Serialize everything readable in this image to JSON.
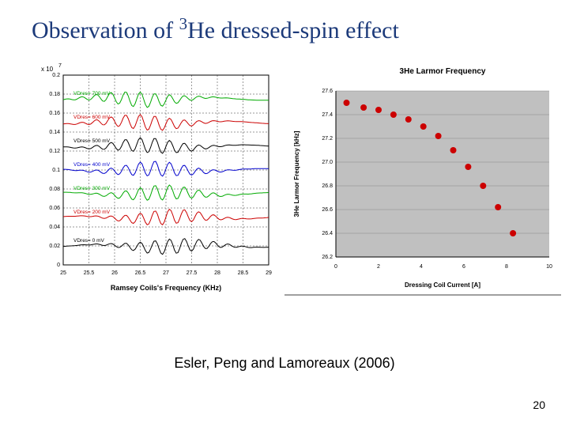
{
  "title_prefix": "Observation of ",
  "title_sup": "3",
  "title_rest": "He dressed-spin effect",
  "title_color": "#1c3a7a",
  "attribution": "Esler, Peng and Lamoreaux (2006)",
  "page_number": "20",
  "left_chart": {
    "type": "line",
    "background_color": "#ffffff",
    "axis_color": "#000000",
    "xlabel": "Ramsey Coils's Frequency (KHz)",
    "xlabel_fontsize": 9,
    "ylabel_exp_prefix": "x 10",
    "ylabel_exp": "7",
    "xlim": [
      25,
      29
    ],
    "xticks": [
      25,
      25.5,
      26,
      26.5,
      27,
      27.5,
      28,
      28.5,
      29
    ],
    "ylim": [
      0,
      0.2
    ],
    "yticks": [
      0,
      0.02,
      0.04,
      0.06,
      0.08,
      0.1,
      0.12,
      0.14,
      0.16,
      0.18,
      0.2
    ],
    "tick_fontsize": 7,
    "grid_color": "#000000",
    "grid_dash": "2,2",
    "series": [
      {
        "label": "VDres= 0 mV",
        "color": "#000000",
        "y_base": 0.02
      },
      {
        "label": "VDres= 200 mV",
        "color": "#cc0000",
        "y_base": 0.05
      },
      {
        "label": "VDres= 300 mV",
        "color": "#00aa00",
        "y_base": 0.075
      },
      {
        "label": "VDres= 400 mV",
        "color": "#0000cc",
        "y_base": 0.1
      },
      {
        "label": "VDres= 500 mV",
        "color": "#000000",
        "y_base": 0.125
      },
      {
        "label": "VDres= 600 mV",
        "color": "#cc0000",
        "y_base": 0.15
      },
      {
        "label": "VDres= 700 mV",
        "color": "#00aa00",
        "y_base": 0.175
      }
    ],
    "wiggle_amplitude": 0.008,
    "wiggle_freq": 22
  },
  "right_chart": {
    "type": "scatter",
    "title": "3He Larmor Frequency",
    "title_fontsize": 10,
    "title_weight": "bold",
    "background_color": "#c0c0c0",
    "outer_bg": "#ffffff",
    "axis_color": "#000000",
    "grid_color": "#888888",
    "xlabel": "Dressing Coil Current [A]",
    "ylabel": "3He Larmor Frequency [kHz]",
    "label_fontsize": 8,
    "xlim": [
      0,
      10
    ],
    "xticks": [
      0,
      2,
      4,
      6,
      8,
      10
    ],
    "ylim": [
      26.2,
      27.6
    ],
    "yticks": [
      26.2,
      26.4,
      26.6,
      26.8,
      27.0,
      27.2,
      27.4,
      27.6
    ],
    "tick_fontsize": 7,
    "marker_color": "#cc0000",
    "marker_radius": 4,
    "points": [
      [
        0.5,
        27.5
      ],
      [
        1.3,
        27.46
      ],
      [
        2.0,
        27.44
      ],
      [
        2.7,
        27.4
      ],
      [
        3.4,
        27.36
      ],
      [
        4.1,
        27.3
      ],
      [
        4.8,
        27.22
      ],
      [
        5.5,
        27.1
      ],
      [
        6.2,
        26.96
      ],
      [
        6.9,
        26.8
      ],
      [
        7.6,
        26.62
      ],
      [
        8.3,
        26.4
      ]
    ]
  }
}
